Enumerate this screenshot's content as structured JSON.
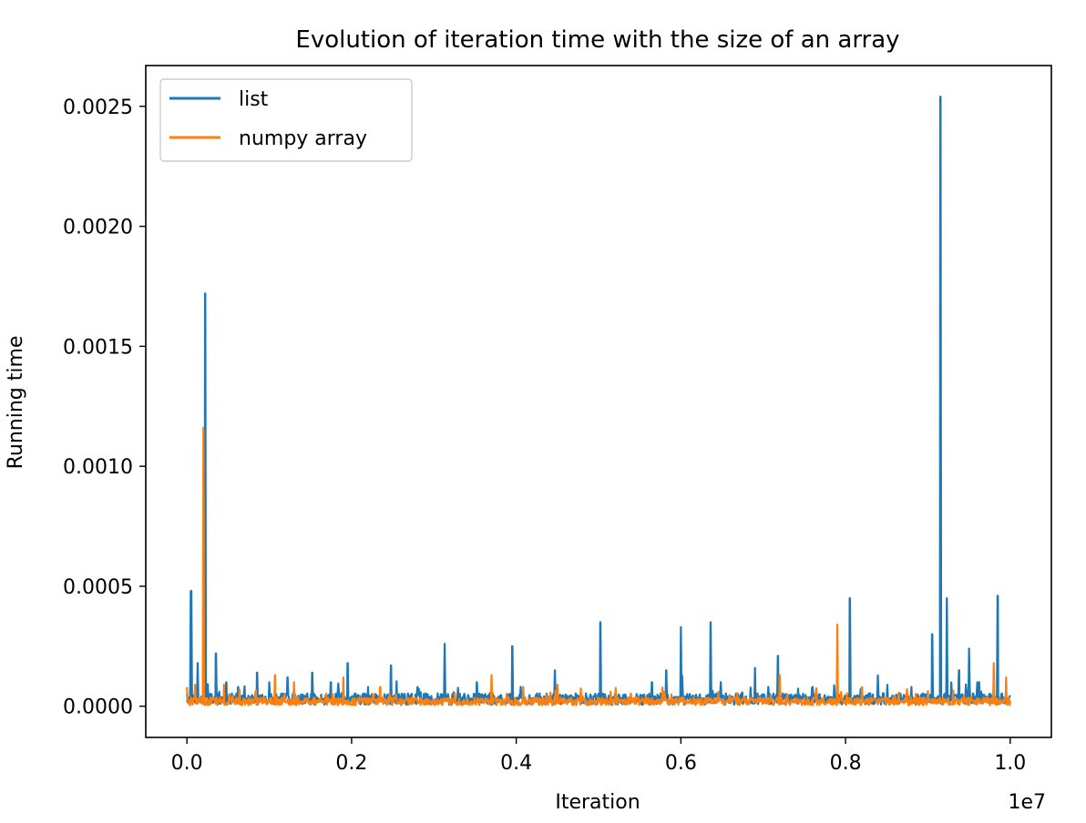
{
  "chart_data": {
    "type": "line",
    "title": "Evolution of iteration time with the size of an array",
    "xlabel": "Iteration",
    "ylabel": "Running time",
    "x_offset_text": "1e7",
    "xlim": [
      -0.05,
      1.05
    ],
    "ylim": [
      -0.00013,
      0.00267
    ],
    "xticks": [
      0.0,
      0.2,
      0.4,
      0.6,
      0.8,
      1.0
    ],
    "xtick_labels": [
      "0.0",
      "0.2",
      "0.4",
      "0.6",
      "0.8",
      "1.0"
    ],
    "yticks": [
      0.0,
      0.0005,
      0.001,
      0.0015,
      0.002,
      0.0025
    ],
    "ytick_labels": [
      "0.0000",
      "0.0005",
      "0.0010",
      "0.0015",
      "0.0020",
      "0.0025"
    ],
    "legend_position": "top-left",
    "series": [
      {
        "name": "list",
        "color": "#1f77b4",
        "baseline": 3e-05,
        "spikes": [
          [
            0.005,
            0.00048
          ],
          [
            0.013,
            0.00018
          ],
          [
            0.022,
            0.00172
          ],
          [
            0.035,
            0.00022
          ],
          [
            0.048,
            0.0001
          ],
          [
            0.062,
            8e-05
          ],
          [
            0.085,
            0.00014
          ],
          [
            0.1,
            0.0001
          ],
          [
            0.122,
            0.00012
          ],
          [
            0.152,
            0.00014
          ],
          [
            0.175,
            0.0001
          ],
          [
            0.195,
            0.00018
          ],
          [
            0.22,
            8e-05
          ],
          [
            0.248,
            0.00017
          ],
          [
            0.28,
            8e-05
          ],
          [
            0.313,
            0.00026
          ],
          [
            0.352,
            0.0001
          ],
          [
            0.395,
            0.00025
          ],
          [
            0.447,
            0.00015
          ],
          [
            0.502,
            0.00035
          ],
          [
            0.565,
            0.0001
          ],
          [
            0.582,
            0.00015
          ],
          [
            0.6,
            0.00033
          ],
          [
            0.636,
            0.00035
          ],
          [
            0.69,
            0.00016
          ],
          [
            0.718,
            0.00021
          ],
          [
            0.76,
            8e-05
          ],
          [
            0.805,
            0.00045
          ],
          [
            0.88,
            8e-05
          ],
          [
            0.905,
            0.0003
          ],
          [
            0.915,
            0.00254
          ],
          [
            0.923,
            0.00045
          ],
          [
            0.938,
            0.00015
          ],
          [
            0.95,
            0.00024
          ],
          [
            0.962,
            0.0001
          ],
          [
            0.985,
            0.00046
          ],
          [
            0.995,
            0.0001
          ]
        ]
      },
      {
        "name": "numpy array",
        "color": "#ff7f0e",
        "baseline": 2e-05,
        "spikes": [
          [
            0.0,
            8e-05
          ],
          [
            0.01,
            9e-05
          ],
          [
            0.02,
            0.00116
          ],
          [
            0.045,
            9e-05
          ],
          [
            0.107,
            0.00013
          ],
          [
            0.13,
            0.0001
          ],
          [
            0.19,
            0.00012
          ],
          [
            0.235,
            8e-05
          ],
          [
            0.37,
            0.00013
          ],
          [
            0.45,
            9e-05
          ],
          [
            0.58,
            6e-05
          ],
          [
            0.72,
            0.00013
          ],
          [
            0.79,
            0.00034
          ],
          [
            0.82,
            8e-05
          ],
          [
            0.98,
            0.00018
          ],
          [
            0.995,
            0.00012
          ]
        ]
      }
    ]
  }
}
